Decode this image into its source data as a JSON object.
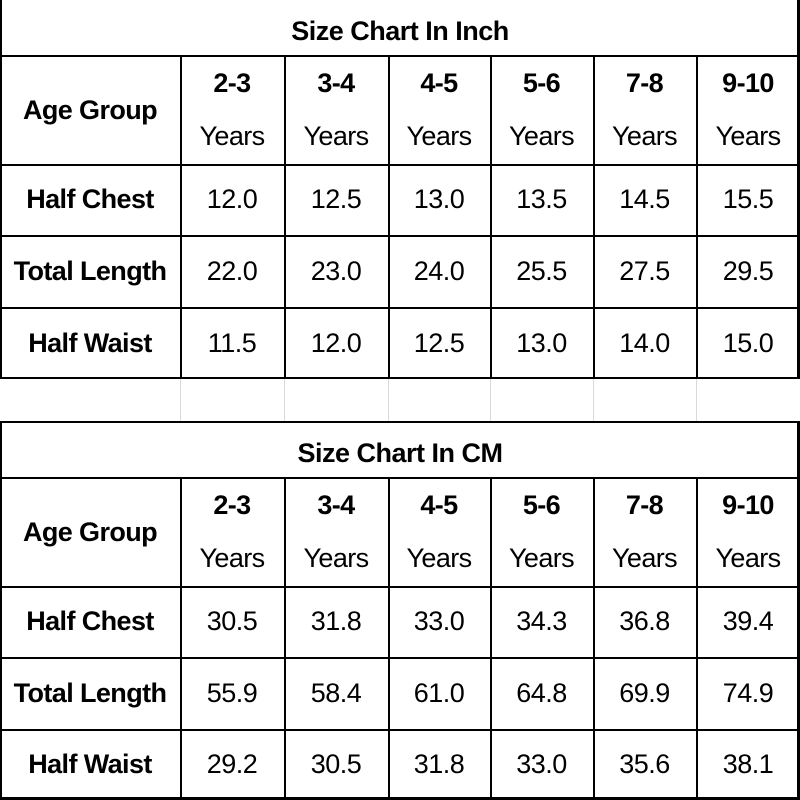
{
  "tables": [
    {
      "title": "Size Chart In Inch",
      "row_header": "Age Group",
      "columns": [
        {
          "age": "2-3",
          "unit": "Years"
        },
        {
          "age": "3-4",
          "unit": "Years"
        },
        {
          "age": "4-5",
          "unit": "Years"
        },
        {
          "age": "5-6",
          "unit": "Years"
        },
        {
          "age": "7-8",
          "unit": "Years"
        },
        {
          "age": "9-10",
          "unit": "Years"
        }
      ],
      "rows": [
        {
          "label": "Half Chest",
          "values": [
            "12.0",
            "12.5",
            "13.0",
            "13.5",
            "14.5",
            "15.5"
          ]
        },
        {
          "label": "Total Length",
          "values": [
            "22.0",
            "23.0",
            "24.0",
            "25.5",
            "27.5",
            "29.5"
          ]
        },
        {
          "label": "Half Waist",
          "values": [
            "11.5",
            "12.0",
            "12.5",
            "13.0",
            "14.0",
            "15.0"
          ]
        }
      ]
    },
    {
      "title": "Size Chart In CM",
      "row_header": "Age Group",
      "columns": [
        {
          "age": "2-3",
          "unit": "Years"
        },
        {
          "age": "3-4",
          "unit": "Years"
        },
        {
          "age": "4-5",
          "unit": "Years"
        },
        {
          "age": "5-6",
          "unit": "Years"
        },
        {
          "age": "7-8",
          "unit": "Years"
        },
        {
          "age": "9-10",
          "unit": "Years"
        }
      ],
      "rows": [
        {
          "label": "Half Chest",
          "values": [
            "30.5",
            "31.8",
            "33.0",
            "34.3",
            "36.8",
            "39.4"
          ]
        },
        {
          "label": "Total Length",
          "values": [
            "55.9",
            "58.4",
            "61.0",
            "64.8",
            "69.9",
            "74.9"
          ]
        },
        {
          "label": "Half Waist",
          "values": [
            "29.2",
            "30.5",
            "31.8",
            "33.0",
            "35.6",
            "38.1"
          ]
        }
      ]
    }
  ],
  "colors": {
    "border": "#000000",
    "gridline": "#d9d9d9",
    "background": "#ffffff",
    "text": "#000000"
  }
}
